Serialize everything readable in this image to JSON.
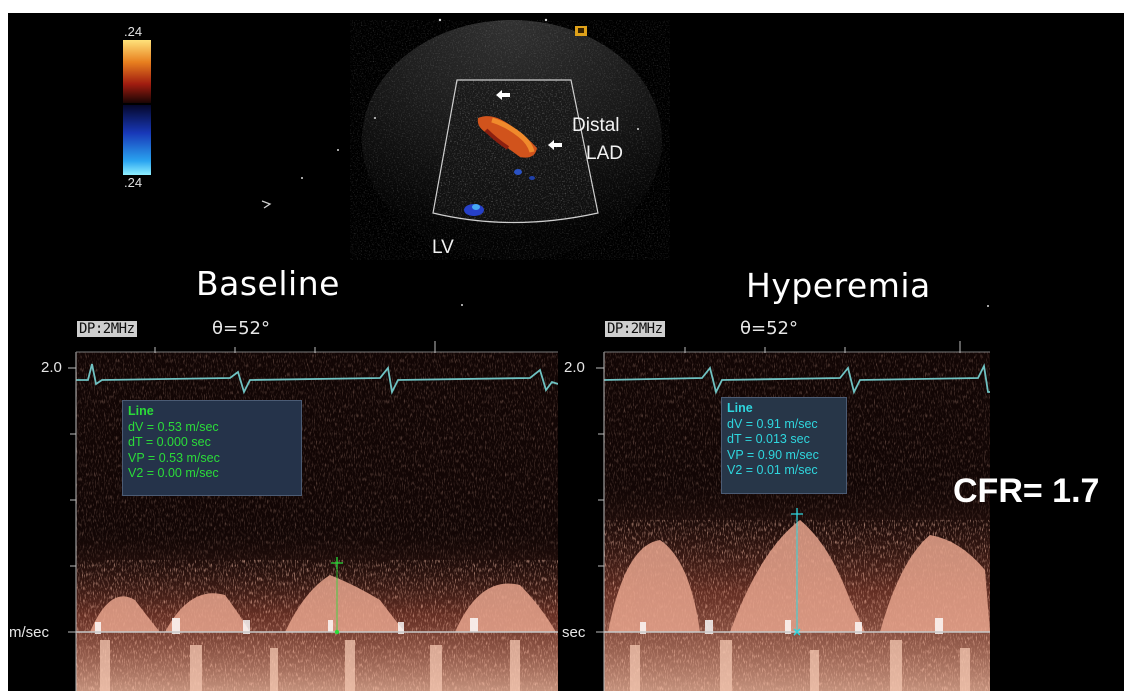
{
  "color_bar": {
    "top_label": ".24",
    "bottom_label": ".24"
  },
  "echo": {
    "annotation_vessel_line1": "Distal",
    "annotation_vessel_line2": "LAD",
    "annotation_chamber": "LV"
  },
  "panels": [
    {
      "title": "Baseline",
      "mode_badge": "DP:2MHz",
      "angle": "θ=52°",
      "scale_top": "2.0",
      "unit_label": "m/sec",
      "measurement": {
        "header": "Line",
        "rows": [
          "dV = 0.53 m/sec",
          "dT = 0.000 sec",
          "VP = 0.53 m/sec",
          "V2 = 0.00 m/sec"
        ]
      }
    },
    {
      "title": "Hyperemia",
      "mode_badge": "DP:2MHz",
      "angle": "θ=52°",
      "scale_top": "2.0",
      "unit_label": "sec",
      "measurement": {
        "header": "Line",
        "rows": [
          "dV = 0.91 m/sec",
          "dT = 0.013 sec",
          "VP = 0.90 m/sec",
          "V2 = 0.01 m/sec"
        ]
      }
    }
  ],
  "result": {
    "cfr": "CFR= 1.7"
  },
  "colors": {
    "green_text": "#2bdc39",
    "cyan_text": "#2fd6de",
    "ecg": "#6fc2c2",
    "doppler": "#e8987a"
  }
}
